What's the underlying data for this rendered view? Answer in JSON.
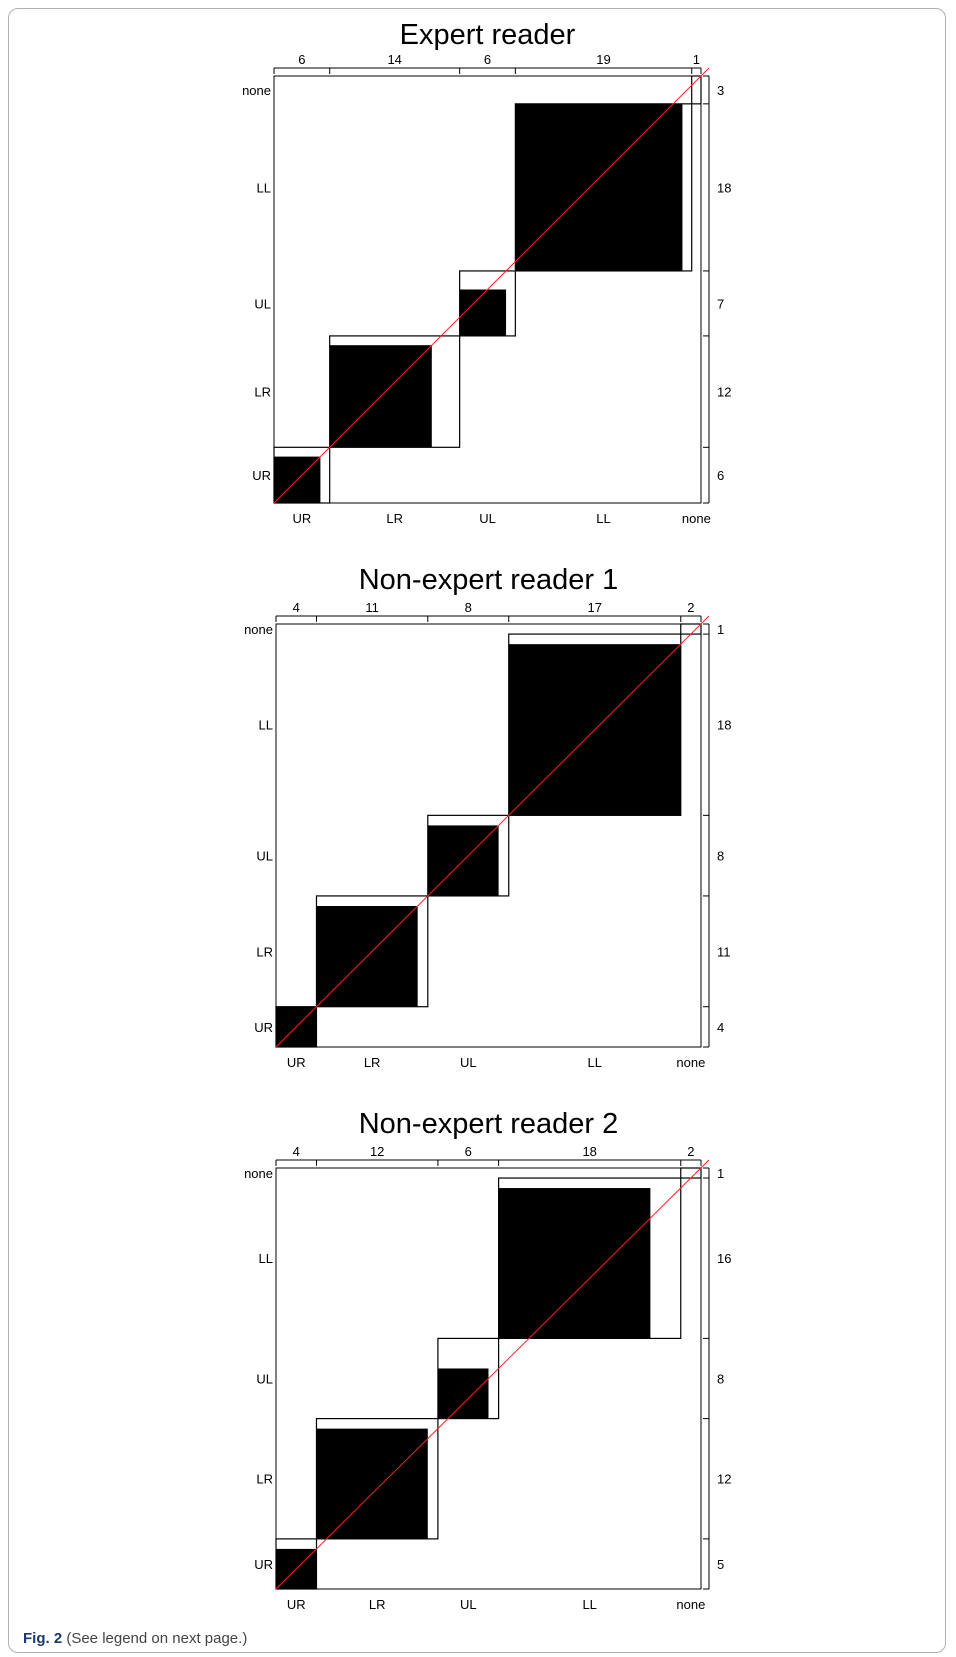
{
  "caption": {
    "label": "Fig. 2",
    "text": "(See legend on next page.)"
  },
  "colors": {
    "block": "#000000",
    "diagonal": "#ff2020",
    "frame": "#000000"
  },
  "chart_data": [
    {
      "type": "agreement",
      "title": "Expert reader",
      "categories": [
        "UR",
        "LR",
        "UL",
        "LL",
        "none"
      ],
      "column_totals": [
        6,
        14,
        6,
        19,
        1
      ],
      "row_totals": [
        6,
        12,
        7,
        18,
        3
      ],
      "diagonal_agreement": [
        5,
        11,
        5,
        18,
        0
      ],
      "total": 46
    },
    {
      "type": "agreement",
      "title": "Non-expert reader 1",
      "categories": [
        "UR",
        "LR",
        "UL",
        "LL",
        "none"
      ],
      "column_totals": [
        4,
        11,
        8,
        17,
        2
      ],
      "row_totals": [
        4,
        11,
        8,
        18,
        1
      ],
      "diagonal_agreement": [
        4,
        10,
        7,
        17,
        0
      ],
      "total": 42
    },
    {
      "type": "agreement",
      "title": "Non-expert reader 2",
      "categories": [
        "UR",
        "LR",
        "UL",
        "LL",
        "none"
      ],
      "column_totals": [
        4,
        12,
        6,
        18,
        2
      ],
      "row_totals": [
        5,
        12,
        8,
        16,
        1
      ],
      "diagonal_agreement": [
        4,
        11,
        5,
        15,
        0
      ],
      "total": 42
    }
  ]
}
